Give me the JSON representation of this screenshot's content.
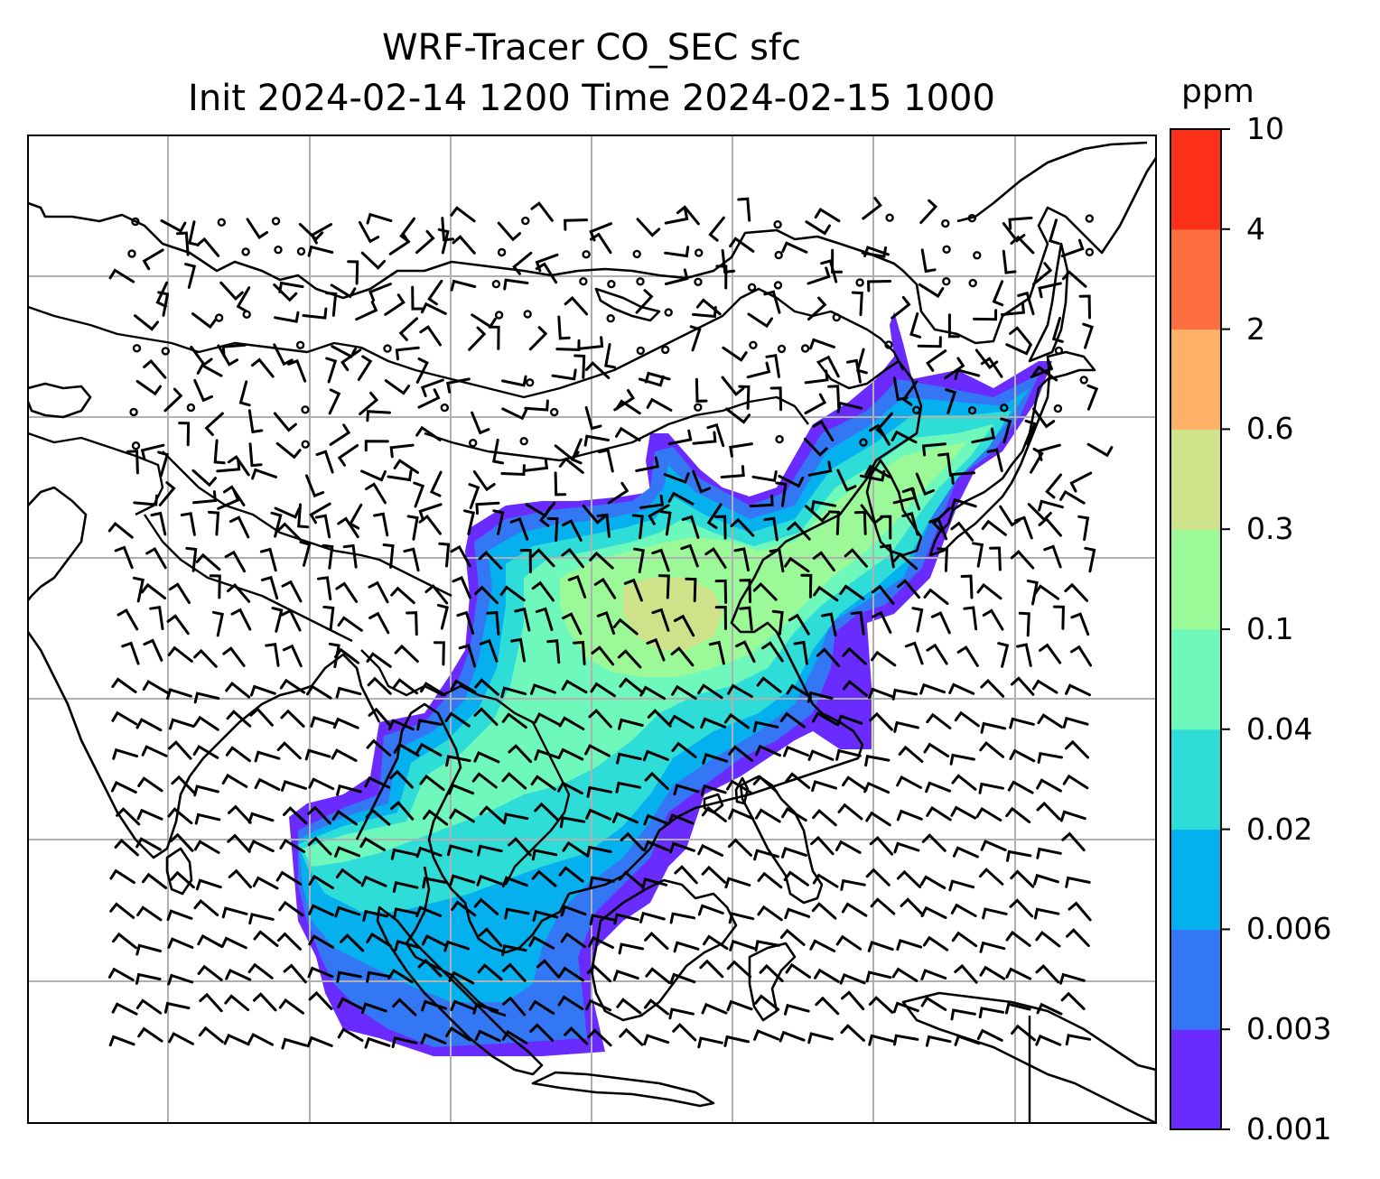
{
  "title": {
    "line1": "WRF-Tracer CO_SEC sfc",
    "line2": "Init 2024-02-14 1200 Time 2024-02-15 1000"
  },
  "colorbar": {
    "unit": "ppm",
    "levels": [
      "0.001",
      "0.003",
      "0.006",
      "0.02",
      "0.04",
      "0.1",
      "0.3",
      "0.6",
      "2",
      "4",
      "10"
    ],
    "colors": [
      "#6a2bff",
      "#3477f5",
      "#05b0ee",
      "#2edcd8",
      "#6ef8bb",
      "#9bfa97",
      "#cfe28a",
      "#fdb167",
      "#fd6f3e",
      "#fc2f18"
    ]
  },
  "map": {
    "region": "East and Southeast Asia",
    "gridlines": true,
    "layers": [
      "coastlines",
      "country-borders",
      "tracer-concentration-fill",
      "wind-barbs"
    ],
    "tracer": "CO_SEC",
    "level": "sfc"
  }
}
